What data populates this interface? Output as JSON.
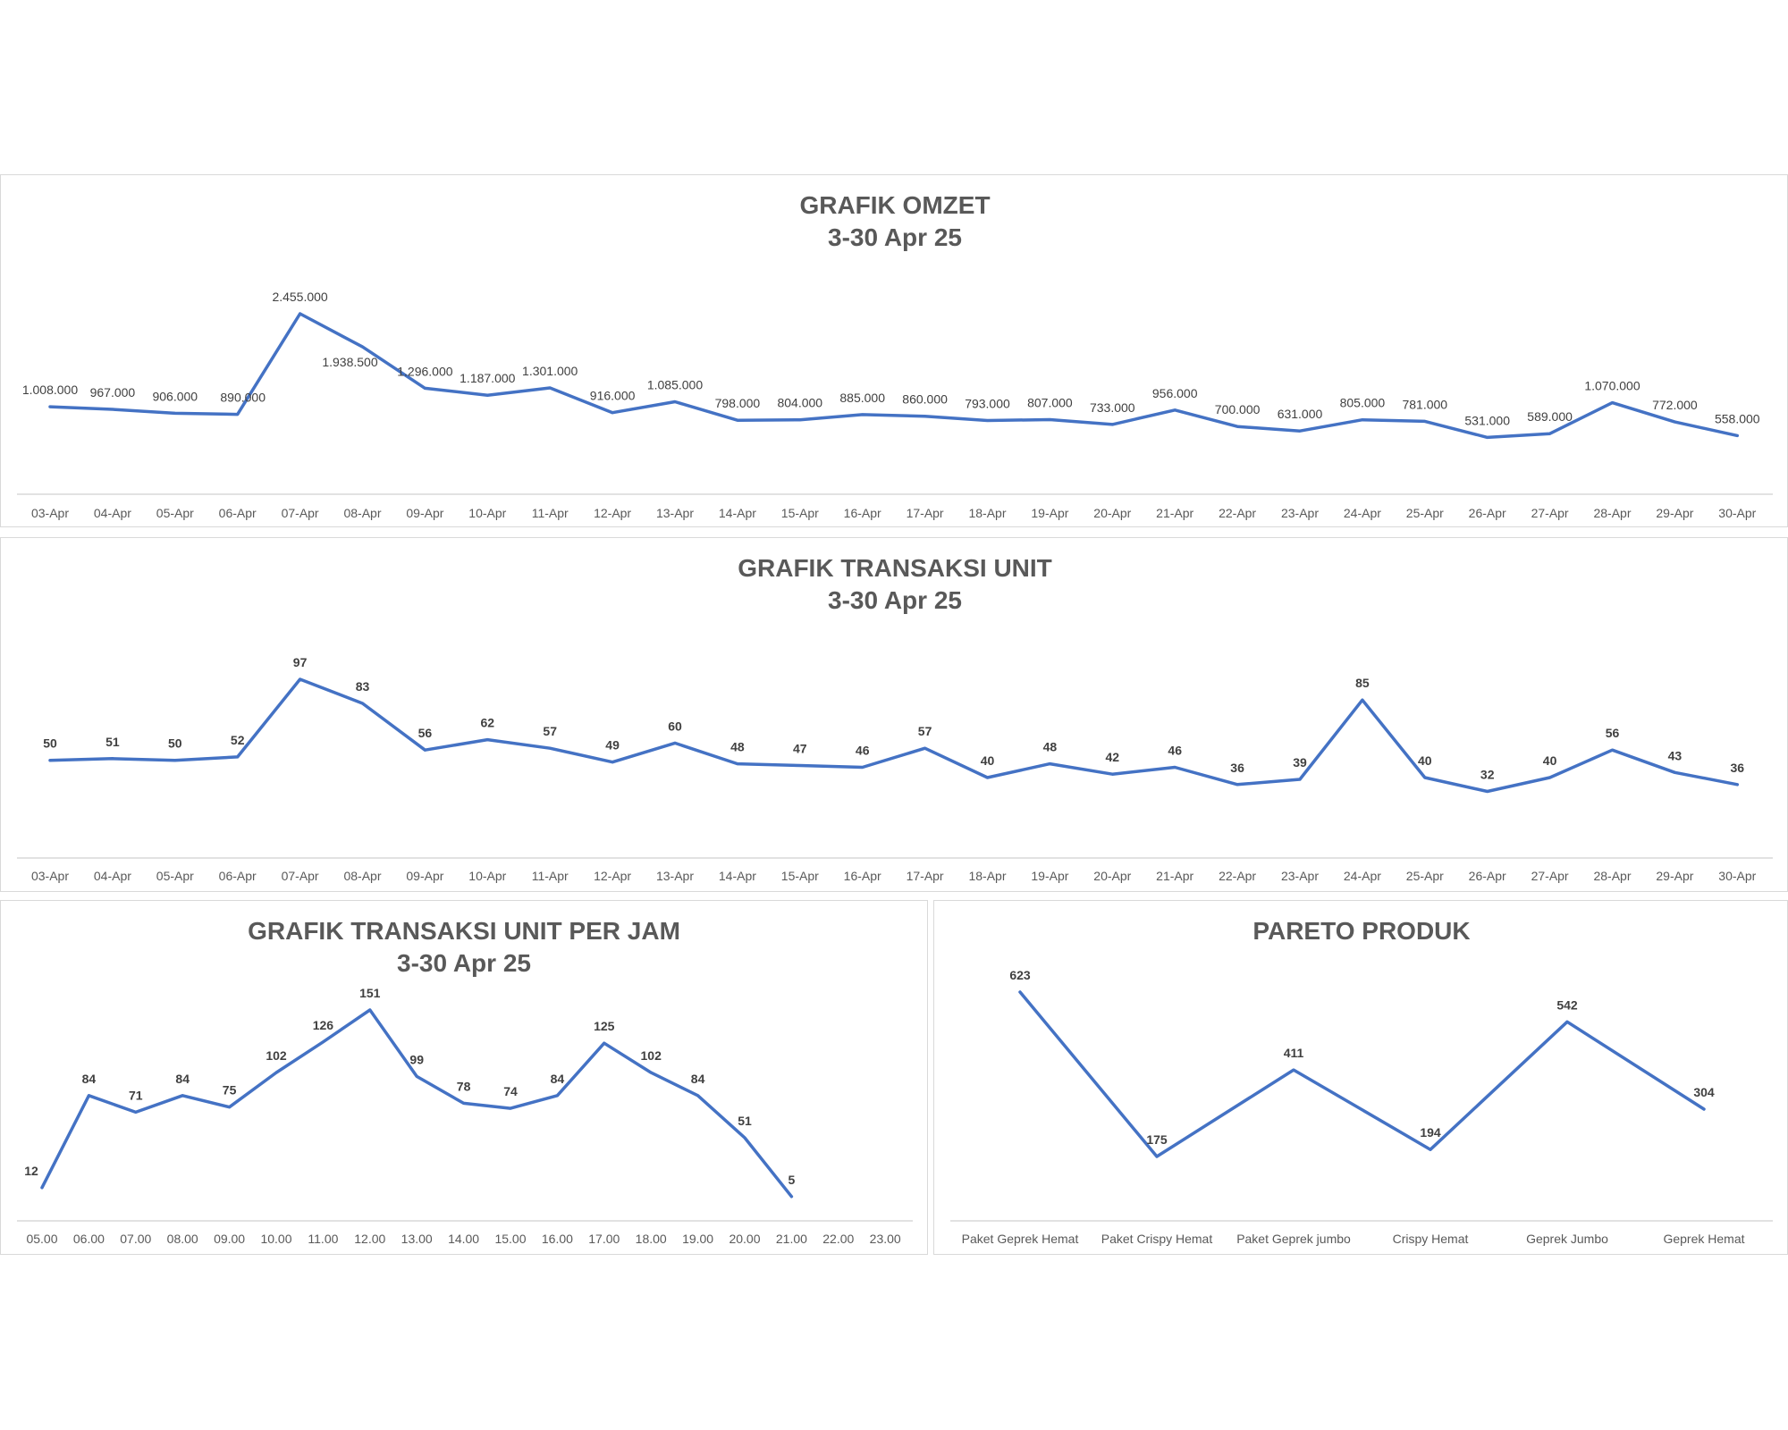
{
  "chart_data": [
    {
      "id": "omzet",
      "type": "line",
      "title": "GRAFIK OMZET",
      "subtitle": "3-30 Apr 25",
      "categories": [
        "03-Apr",
        "04-Apr",
        "05-Apr",
        "06-Apr",
        "07-Apr",
        "08-Apr",
        "09-Apr",
        "10-Apr",
        "11-Apr",
        "12-Apr",
        "13-Apr",
        "14-Apr",
        "15-Apr",
        "16-Apr",
        "17-Apr",
        "18-Apr",
        "19-Apr",
        "20-Apr",
        "21-Apr",
        "22-Apr",
        "23-Apr",
        "24-Apr",
        "25-Apr",
        "26-Apr",
        "27-Apr",
        "28-Apr",
        "29-Apr",
        "30-Apr"
      ],
      "values": [
        1008000,
        967000,
        906000,
        890000,
        2455000,
        1938500,
        1296000,
        1187000,
        1301000,
        916000,
        1085000,
        798000,
        804000,
        885000,
        860000,
        793000,
        807000,
        733000,
        956000,
        700000,
        631000,
        805000,
        781000,
        531000,
        589000,
        1070000,
        772000,
        558000
      ],
      "data_labels": [
        "1.008.000",
        "967.000",
        "906.000",
        "890.000",
        "2.455.000",
        "1.938.500",
        "1.296.000",
        "1.187.000",
        "1.301.000",
        "916.000",
        "1.085.000",
        "798.000",
        "804.000",
        "885.000",
        "860.000",
        "793.000",
        "807.000",
        "733.000",
        "956.000",
        "700.000",
        "631.000",
        "805.000",
        "781.000",
        "531.000",
        "589.000",
        "1.070.000",
        "772.000",
        "558.000"
      ],
      "color": "#4472c4",
      "grid": false
    },
    {
      "id": "unit",
      "type": "line",
      "title": "GRAFIK TRANSAKSI UNIT",
      "subtitle": "3-30 Apr 25",
      "categories": [
        "03-Apr",
        "04-Apr",
        "05-Apr",
        "06-Apr",
        "07-Apr",
        "08-Apr",
        "09-Apr",
        "10-Apr",
        "11-Apr",
        "12-Apr",
        "13-Apr",
        "14-Apr",
        "15-Apr",
        "16-Apr",
        "17-Apr",
        "18-Apr",
        "19-Apr",
        "20-Apr",
        "21-Apr",
        "22-Apr",
        "23-Apr",
        "24-Apr",
        "25-Apr",
        "26-Apr",
        "27-Apr",
        "28-Apr",
        "29-Apr",
        "30-Apr"
      ],
      "values": [
        50,
        51,
        50,
        52,
        97,
        83,
        56,
        62,
        57,
        49,
        60,
        48,
        47,
        46,
        57,
        40,
        48,
        42,
        46,
        36,
        39,
        85,
        40,
        32,
        40,
        56,
        43,
        36
      ],
      "data_labels": [
        "50",
        "51",
        "50",
        "52",
        "97",
        "83",
        "56",
        "62",
        "57",
        "49",
        "60",
        "48",
        "47",
        "46",
        "57",
        "40",
        "48",
        "42",
        "46",
        "36",
        "39",
        "85",
        "40",
        "32",
        "40",
        "56",
        "43",
        "36"
      ],
      "color": "#4472c4",
      "grid": false
    },
    {
      "id": "perjam",
      "type": "line",
      "title": "GRAFIK TRANSAKSI UNIT PER JAM",
      "subtitle": "3-30 Apr 25",
      "categories": [
        "05.00",
        "06.00",
        "07.00",
        "08.00",
        "09.00",
        "10.00",
        "11.00",
        "12.00",
        "13.00",
        "14.00",
        "15.00",
        "16.00",
        "17.00",
        "18.00",
        "19.00",
        "20.00",
        "21.00",
        "22.00",
        "23.00"
      ],
      "values": [
        12,
        84,
        71,
        84,
        75,
        102,
        126,
        151,
        99,
        78,
        74,
        84,
        125,
        102,
        84,
        51,
        5,
        null,
        null
      ],
      "data_labels": [
        "12",
        "84",
        "71",
        "84",
        "75",
        "102",
        "126",
        "151",
        "99",
        "78",
        "74",
        "84",
        "125",
        "102",
        "84",
        "51",
        "5",
        "",
        ""
      ],
      "color": "#4472c4",
      "grid": false
    },
    {
      "id": "pareto",
      "type": "line",
      "title": "PARETO PRODUK",
      "subtitle": "",
      "categories": [
        "Paket Geprek Hemat",
        "Paket Crispy Hemat",
        "Paket Geprek jumbo",
        "Crispy Hemat",
        "Geprek Jumbo",
        "Geprek Hemat"
      ],
      "values": [
        623,
        175,
        411,
        194,
        542,
        304
      ],
      "data_labels": [
        "623",
        "175",
        "411",
        "194",
        "542",
        "304"
      ],
      "color": "#4472c4",
      "grid": false
    }
  ]
}
